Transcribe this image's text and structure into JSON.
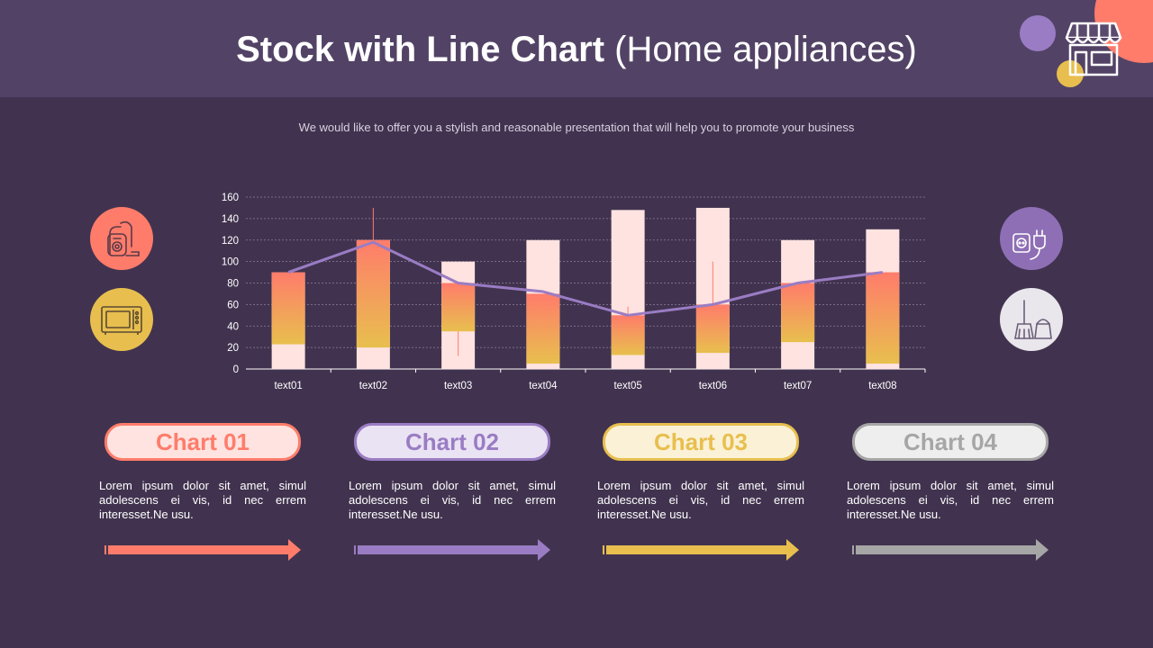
{
  "header": {
    "title_bold": "Stock with Line Chart",
    "title_rest": "(Home appliances)",
    "store_icon": "store-icon"
  },
  "subtitle": "We would like to offer you a stylish and reasonable presentation that will help you to promote your business",
  "side_icons": {
    "left": [
      {
        "name": "vacuum-cleaner-icon",
        "color": "#FF7C6B"
      },
      {
        "name": "microwave-icon",
        "color": "#E8BF4E"
      }
    ],
    "right": [
      {
        "name": "power-plug-icon",
        "color": "#8E6FB5"
      },
      {
        "name": "broom-bucket-icon",
        "color": "#E9E6EC"
      }
    ]
  },
  "chart_data": {
    "type": "bar",
    "subtype": "stock-with-line",
    "categories": [
      "text01",
      "text02",
      "text03",
      "text04",
      "text05",
      "text06",
      "text07",
      "text08"
    ],
    "ylim": [
      0,
      160
    ],
    "yticks": [
      0,
      20,
      40,
      60,
      80,
      100,
      120,
      140,
      160
    ],
    "grid": true,
    "series": [
      {
        "role": "low",
        "values": [
          23,
          20,
          35,
          5,
          13,
          15,
          25,
          5
        ]
      },
      {
        "role": "open_close_top",
        "values": [
          90,
          120,
          80,
          70,
          50,
          60,
          80,
          90
        ]
      },
      {
        "role": "high",
        "values": [
          90,
          120,
          100,
          120,
          148,
          150,
          120,
          130
        ]
      },
      {
        "role": "line",
        "values": [
          90,
          118,
          80,
          72,
          50,
          60,
          80,
          90
        ]
      }
    ],
    "whiskers": [
      {
        "category": "text02",
        "low": 120,
        "high": 150
      },
      {
        "category": "text03",
        "low": 12,
        "high": 35
      },
      {
        "category": "text05",
        "low": 50,
        "high": 58
      },
      {
        "category": "text06",
        "low": 60,
        "high": 100
      }
    ],
    "colors": {
      "background_bar": "#FFE3E0",
      "gradient_top": "#FF7C6B",
      "gradient_bottom": "#E8BF4E",
      "line": "#9A7CC4",
      "axis_text": "#FFFFFF"
    }
  },
  "cards": [
    {
      "title": "Chart 01",
      "text": "Lorem ipsum dolor sit amet, simul adolescens ei vis, id nec errem interesset.Ne usu.",
      "color": "#FF7C6B",
      "bg": "#FFE3E0"
    },
    {
      "title": "Chart 02",
      "text": "Lorem ipsum dolor sit amet, simul adolescens ei vis, id nec errem interesset.Ne usu.",
      "color": "#9A7CC4",
      "bg": "#EAE3F3"
    },
    {
      "title": "Chart 03",
      "text": "Lorem ipsum dolor sit amet, simul adolescens ei vis, id nec errem interesset.Ne usu.",
      "color": "#E8BF4E",
      "bg": "#FBF1D6"
    },
    {
      "title": "Chart 04",
      "text": "Lorem ipsum dolor sit amet, simul adolescens ei vis, id nec errem interesset.Ne usu.",
      "color": "#A6A6A6",
      "bg": "#EEEEEE"
    }
  ]
}
